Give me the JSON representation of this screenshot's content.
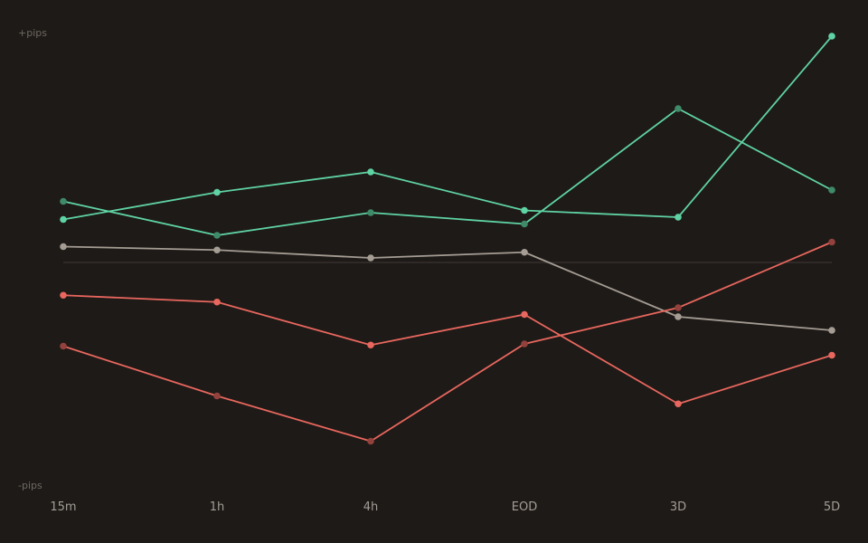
{
  "colors": {
    "background": "#1e1a17",
    "zero_line": "#3a3531",
    "axis_text": "#6e6862",
    "tick_text": "#a39d96"
  },
  "chart_data": {
    "type": "line",
    "title": "",
    "xlabel": "",
    "ylabel": "",
    "y_top_label": "+pips",
    "y_bottom_label": "-pips",
    "categories": [
      "15m",
      "1h",
      "4h",
      "EOD",
      "3D",
      "5D"
    ],
    "ylim": [
      -100,
      100
    ],
    "zero_line": true,
    "grid": false,
    "legend": "none",
    "series": [
      {
        "color": "#5fd3a3",
        "point_color": "#5fd3a3",
        "values": [
          19,
          31,
          40,
          23,
          20,
          100
        ]
      },
      {
        "color": "#5fd3a3",
        "point_color": "#3f8a68",
        "values": [
          27,
          12,
          22,
          17,
          68,
          32
        ]
      },
      {
        "color": "#a59d94",
        "point_color": "#a59d94",
        "values": [
          7,
          5.5,
          2,
          4.5,
          -24,
          -30
        ]
      },
      {
        "color": "#e8675e",
        "point_color": "#e8675e",
        "values": [
          -14.5,
          -17.5,
          -36.5,
          -23,
          -62.5,
          -41
        ]
      },
      {
        "color": "#e8675e",
        "point_color": "#93413c",
        "values": [
          -37,
          -59,
          -79,
          -36,
          -20,
          9
        ]
      }
    ]
  }
}
